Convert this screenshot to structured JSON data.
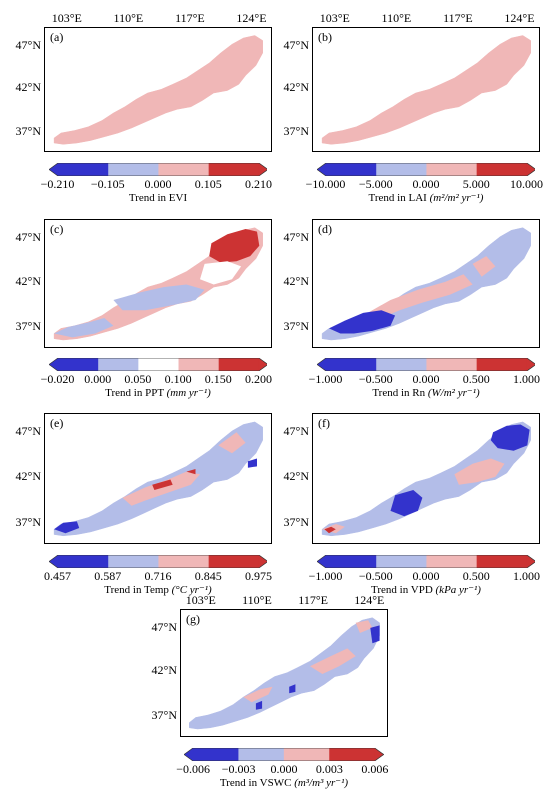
{
  "chart_data": [
    {
      "panel": "(a)",
      "type": "heatmap",
      "lon_ticks": [
        "103°E",
        "110°E",
        "117°E",
        "124°E"
      ],
      "lat_ticks": [
        "47°N",
        "42°N",
        "37°N"
      ],
      "colorbar": {
        "label_text": "Trend in EVI",
        "label_unit": "",
        "ticks": [
          "−0.210",
          "−0.105",
          "0.000",
          "0.105",
          "0.210"
        ],
        "colors": [
          "#3333cc",
          "#b3bde8",
          "#f0b7b7",
          "#cc3333"
        ]
      },
      "dominant_class": "0.000 to 0.105",
      "regions": []
    },
    {
      "panel": "(b)",
      "type": "heatmap",
      "lon_ticks": [
        "103°E",
        "110°E",
        "117°E",
        "124°E"
      ],
      "lat_ticks": [
        "47°N",
        "42°N",
        "37°N"
      ],
      "colorbar": {
        "label_text": "Trend in LAI",
        "label_unit": "(m²/m² yr⁻¹)",
        "ticks": [
          "−10.000",
          "−5.000",
          "0.000",
          "5.000",
          "10.000"
        ],
        "colors": [
          "#3333cc",
          "#b3bde8",
          "#f0b7b7",
          "#cc3333"
        ]
      },
      "dominant_class": "0.000 to 5.000",
      "regions": []
    },
    {
      "panel": "(c)",
      "type": "heatmap",
      "lon_ticks": [],
      "lat_ticks": [
        "47°N",
        "42°N",
        "37°N"
      ],
      "colorbar": {
        "label_text": "Trend in PPT",
        "label_unit": "(mm yr⁻¹)",
        "ticks": [
          "−0.020",
          "0.000",
          "0.050",
          "0.100",
          "0.150",
          "0.200"
        ],
        "colors": [
          "#3333cc",
          "#b3bde8",
          "#ffffff",
          "#f0b7b7",
          "#cc3333"
        ]
      },
      "dominant_class": "0.050 to 0.100",
      "regions": [
        {
          "class": "0.150 to 0.200",
          "area": "northeast"
        },
        {
          "class": "0.000 to 0.050",
          "area": "central and southwest"
        }
      ]
    },
    {
      "panel": "(d)",
      "type": "heatmap",
      "lon_ticks": [],
      "lat_ticks": [
        "47°N",
        "42°N",
        "37°N"
      ],
      "colorbar": {
        "label_text": "Trend in Rn",
        "label_unit": "(W/m² yr⁻¹)",
        "ticks": [
          "−1.000",
          "−0.500",
          "0.000",
          "0.500",
          "1.000"
        ],
        "colors": [
          "#3333cc",
          "#b3bde8",
          "#f0b7b7",
          "#cc3333"
        ]
      },
      "dominant_class": "−0.500 to 0.000",
      "regions": [
        {
          "class": "0.000 to 0.500",
          "area": "central"
        },
        {
          "class": "−1.000 to −0.500",
          "area": "southwest"
        }
      ]
    },
    {
      "panel": "(e)",
      "type": "heatmap",
      "lon_ticks": [],
      "lat_ticks": [
        "47°N",
        "42°N",
        "37°N"
      ],
      "colorbar": {
        "label_text": "Trend in Temp",
        "label_unit": "(°C yr⁻¹)",
        "ticks": [
          "0.457",
          "0.587",
          "0.716",
          "0.845",
          "0.975"
        ],
        "colors": [
          "#3333cc",
          "#b3bde8",
          "#f0b7b7",
          "#cc3333"
        ]
      },
      "dominant_class": "0.587 to 0.716",
      "regions": [
        {
          "class": "0.716 to 0.845",
          "area": "central"
        },
        {
          "class": "0.845 to 0.975",
          "area": "central spots"
        },
        {
          "class": "0.457 to 0.587",
          "area": "southwest tip and east edge"
        }
      ]
    },
    {
      "panel": "(f)",
      "type": "heatmap",
      "lon_ticks": [],
      "lat_ticks": [
        "47°N",
        "42°N",
        "37°N"
      ],
      "colorbar": {
        "label_text": "Trend in VPD",
        "label_unit": "(kPa yr⁻¹)",
        "ticks": [
          "−1.000",
          "−0.500",
          "0.000",
          "0.500",
          "1.000"
        ],
        "colors": [
          "#3333cc",
          "#b3bde8",
          "#f0b7b7",
          "#cc3333"
        ]
      },
      "dominant_class": "−0.500 to 0.000",
      "regions": [
        {
          "class": "−1.000 to −0.500",
          "area": "northeast and central"
        },
        {
          "class": "0.000 to 0.500",
          "area": "east and southwest"
        },
        {
          "class": "0.500 to 1.000",
          "area": "southwest tip"
        }
      ]
    },
    {
      "panel": "(g)",
      "type": "heatmap",
      "lon_ticks": [
        "103°E",
        "110°E",
        "117°E",
        "124°E"
      ],
      "lat_ticks": [
        "47°N",
        "42°N",
        "37°N"
      ],
      "colorbar": {
        "label_text": "Trend in VSWC",
        "label_unit": "(m³/m³ yr⁻¹)",
        "ticks": [
          "−0.006",
          "−0.003",
          "0.000",
          "0.003",
          "0.006"
        ],
        "colors": [
          "#3333cc",
          "#b3bde8",
          "#f0b7b7",
          "#cc3333"
        ]
      },
      "dominant_class": "−0.003 to 0.000",
      "regions": [
        {
          "class": "0.000 to 0.003",
          "area": "scattered"
        },
        {
          "class": "−0.006 to −0.003",
          "area": "northeast edge and scattered"
        }
      ]
    }
  ]
}
